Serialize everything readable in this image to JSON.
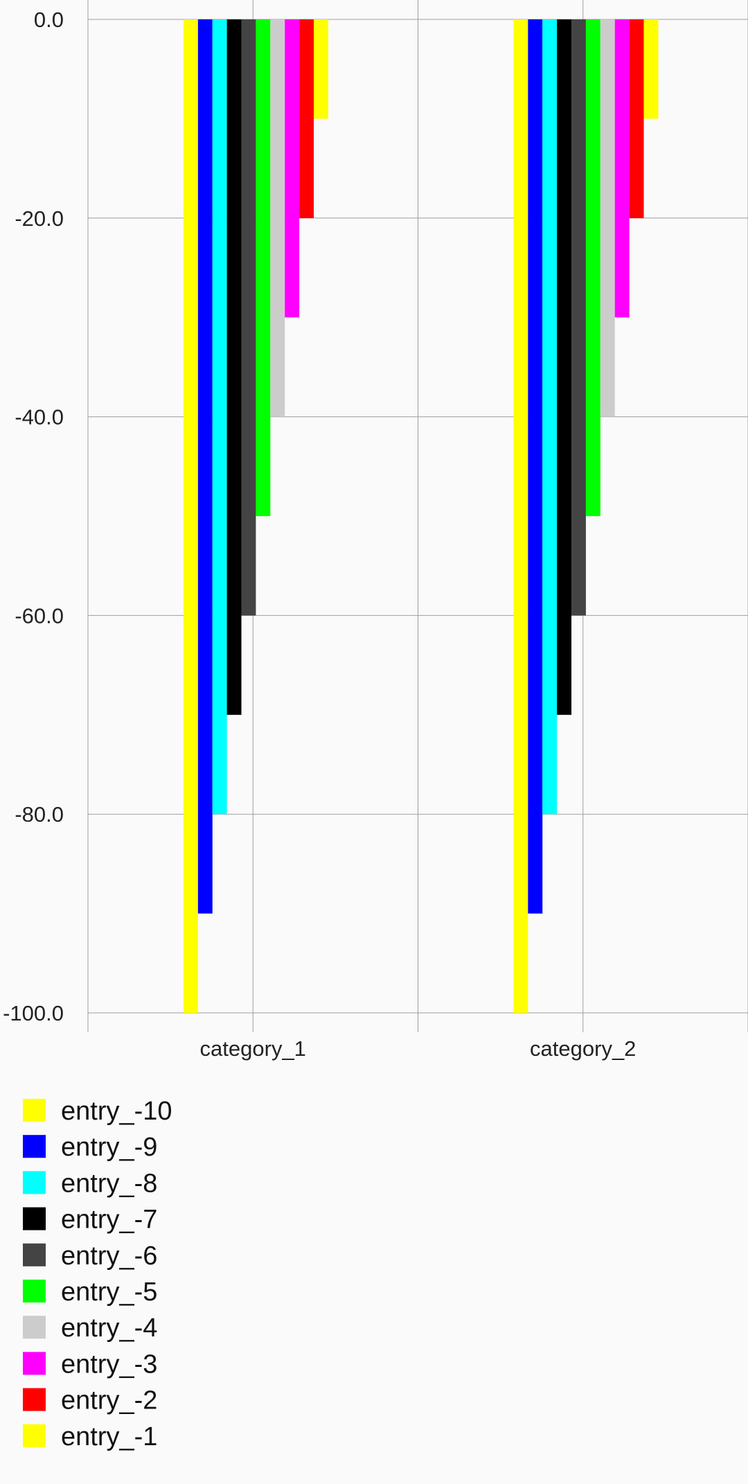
{
  "chart_data": {
    "type": "bar",
    "title": "",
    "xlabel": "",
    "ylabel": "",
    "categories": [
      "category_1",
      "category_2"
    ],
    "ylim": [
      -100,
      0
    ],
    "yticks": [
      0,
      -20,
      -40,
      -60,
      -80,
      -100
    ],
    "ytick_labels": [
      "0.0",
      "-20.0",
      "-40.0",
      "-60.0",
      "-80.0",
      "-100.0"
    ],
    "grid": true,
    "legend_position": "bottom-left",
    "series": [
      {
        "name": "entry_-10",
        "color": "#ffff00",
        "values": [
          -100,
          -100
        ]
      },
      {
        "name": "entry_-9",
        "color": "#0000ff",
        "values": [
          -90,
          -90
        ]
      },
      {
        "name": "entry_-8",
        "color": "#00ffff",
        "values": [
          -80,
          -80
        ]
      },
      {
        "name": "entry_-7",
        "color": "#000000",
        "values": [
          -70,
          -70
        ]
      },
      {
        "name": "entry_-6",
        "color": "#444444",
        "values": [
          -60,
          -60
        ]
      },
      {
        "name": "entry_-5",
        "color": "#00ff00",
        "values": [
          -50,
          -50
        ]
      },
      {
        "name": "entry_-4",
        "color": "#cccccc",
        "values": [
          -40,
          -40
        ]
      },
      {
        "name": "entry_-3",
        "color": "#ff00ff",
        "values": [
          -30,
          -30
        ]
      },
      {
        "name": "entry_-2",
        "color": "#ff0000",
        "values": [
          -20,
          -20
        ]
      },
      {
        "name": "entry_-1",
        "color": "#ffff00",
        "values": [
          -10,
          -10
        ]
      }
    ]
  }
}
